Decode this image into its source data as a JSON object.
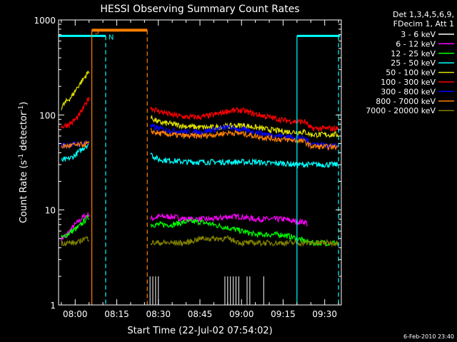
{
  "page": {
    "background": "#000000",
    "foreground": "#ffffff"
  },
  "chart_data": {
    "type": "line",
    "title": "HESSI Observing Summary Count Rates",
    "xlabel": "Start Time (22-Jul-02 07:54:02)",
    "ylabel_prefix": "Count Rate (s",
    "ylabel_sup1": "-1",
    "ylabel_mid": " detector",
    "ylabel_sup2": "-1",
    "ylabel_suffix": ")",
    "x_ticks": [
      "08:00",
      "08:15",
      "08:30",
      "08:45",
      "09:00",
      "09:15",
      "09:30"
    ],
    "x_tick_minutes": [
      480,
      495,
      510,
      525,
      540,
      555,
      570
    ],
    "xlim_minutes": [
      474.0,
      576.0
    ],
    "y_scale": "log",
    "ylim": [
      1,
      1000
    ],
    "y_ticks": [
      "1",
      "10",
      "100",
      "1000"
    ],
    "y_tick_values": [
      1,
      10,
      100,
      1000
    ],
    "legend_header": [
      "Det 1,3,4,5,6,9,",
      "FDecim 1, Att 1"
    ],
    "legend_placement": "right",
    "footer_date": "6-Feb-2010 23:40",
    "annotations": {
      "S": {
        "label": "S",
        "color": "#ff7f00"
      },
      "N": {
        "label": "N",
        "color": "#00ffff"
      },
      "saa_bar": {
        "color": "#ff7f00",
        "start": 486,
        "end": 506,
        "level": 780
      },
      "night_bars": [
        {
          "color": "#00ffff",
          "start": 474,
          "end": 491,
          "level": 680
        },
        {
          "color": "#00ffff",
          "start": 560,
          "end": 575.5,
          "level": 680
        }
      ],
      "vertical_lines": [
        {
          "x": 486,
          "color": "#ff7f00",
          "style": "solid"
        },
        {
          "x": 491,
          "color": "#00ffff",
          "style": "dashed"
        },
        {
          "x": 506,
          "color": "#ff7f00",
          "style": "dashed"
        },
        {
          "x": 560,
          "color": "#00ffff",
          "style": "solid"
        },
        {
          "x": 575,
          "color": "#00ffff",
          "style": "dashed"
        }
      ]
    },
    "series": [
      {
        "name": "3 - 6 keV",
        "color": "#ffffff",
        "kind": "spikes",
        "x": [
          507,
          508,
          509,
          510,
          534,
          535,
          536,
          537,
          538,
          539,
          542,
          543,
          548
        ],
        "values": [
          2,
          2,
          2,
          2,
          2,
          2,
          2,
          2,
          2,
          2,
          2,
          2,
          2
        ]
      },
      {
        "name": "6 - 12 keV",
        "color": "#ff00ff",
        "x": [
          475,
          477,
          479,
          481,
          483,
          485,
          507,
          510,
          515,
          520,
          525,
          530,
          535,
          540,
          545,
          550,
          555,
          560,
          563,
          564
        ],
        "values": [
          5.0,
          5.5,
          6.5,
          7.5,
          8.5,
          9.0,
          8.0,
          8.5,
          8.5,
          8.0,
          8.0,
          8.0,
          8.5,
          8.5,
          8.0,
          8.0,
          8.0,
          7.5,
          7.5,
          7.0
        ]
      },
      {
        "name": "12 - 25 keV",
        "color": "#00ff00",
        "x": [
          475,
          477,
          479,
          481,
          483,
          485,
          507,
          510,
          515,
          520,
          525,
          530,
          535,
          540,
          545,
          550,
          555,
          560,
          565,
          570,
          575
        ],
        "values": [
          5.0,
          5.5,
          6.0,
          6.5,
          7.5,
          8.5,
          7.0,
          7.0,
          7.0,
          7.5,
          7.5,
          7.0,
          6.5,
          6.0,
          5.5,
          5.5,
          5.5,
          5.0,
          4.5,
          4.5,
          4.5
        ]
      },
      {
        "name": "25 - 50 keV",
        "color": "#00ffff",
        "x": [
          475,
          477,
          479,
          481,
          483,
          485,
          507,
          508,
          510,
          515,
          520,
          525,
          530,
          535,
          540,
          545,
          550,
          555,
          560,
          565,
          570,
          575
        ],
        "values": [
          33,
          34,
          36,
          40,
          45,
          50,
          42,
          37,
          34,
          33,
          32,
          32,
          32,
          32,
          32,
          32,
          31,
          31,
          30,
          30,
          30,
          30
        ]
      },
      {
        "name": "50 - 100 keV",
        "color": "#e0e000",
        "x": [
          475,
          477,
          479,
          481,
          483,
          485,
          507,
          510,
          515,
          520,
          525,
          530,
          535,
          540,
          545,
          550,
          555,
          560,
          563,
          565,
          570,
          575
        ],
        "values": [
          120,
          140,
          160,
          200,
          240,
          290,
          95,
          84,
          80,
          76,
          74,
          74,
          76,
          78,
          74,
          70,
          67,
          66,
          66,
          62,
          62,
          62
        ]
      },
      {
        "name": "100 - 300 keV",
        "color": "#ff0000",
        "x": [
          475,
          477,
          479,
          481,
          483,
          485,
          507,
          510,
          515,
          520,
          525,
          530,
          535,
          540,
          545,
          550,
          555,
          560,
          563,
          565,
          570,
          575
        ],
        "values": [
          75,
          78,
          84,
          95,
          118,
          155,
          120,
          110,
          100,
          95,
          95,
          100,
          110,
          112,
          102,
          95,
          88,
          85,
          85,
          72,
          72,
          72
        ]
      },
      {
        "name": "300 - 800 keV",
        "color": "#0000ff",
        "x": [
          475,
          477,
          479,
          481,
          483,
          485,
          507,
          510,
          515,
          520,
          525,
          530,
          535,
          540,
          545,
          550,
          555,
          560,
          563,
          565,
          570,
          575
        ],
        "values": [
          48,
          48,
          49,
          49,
          50,
          52,
          76,
          72,
          68,
          66,
          66,
          70,
          74,
          70,
          66,
          62,
          60,
          58,
          56,
          50,
          48,
          47
        ]
      },
      {
        "name": "800 - 7000 keV",
        "color": "#ff7f00",
        "x": [
          475,
          477,
          479,
          481,
          483,
          485,
          507,
          510,
          515,
          520,
          525,
          530,
          535,
          540,
          545,
          550,
          555,
          560,
          563,
          565,
          570,
          575
        ],
        "values": [
          47,
          47,
          48,
          48,
          49,
          50,
          68,
          64,
          62,
          60,
          60,
          62,
          65,
          64,
          60,
          57,
          55,
          54,
          52,
          47,
          46,
          46
        ]
      },
      {
        "name": "7000 - 20000 keV",
        "color": "#808000",
        "x": [
          475,
          477,
          479,
          481,
          483,
          485,
          507,
          510,
          515,
          520,
          525,
          530,
          535,
          540,
          545,
          550,
          555,
          560,
          565,
          570,
          575
        ],
        "values": [
          4.5,
          4.5,
          4.5,
          4.5,
          5.0,
          5.0,
          4.5,
          4.5,
          4.5,
          4.5,
          5.0,
          5.0,
          5.0,
          4.5,
          4.5,
          4.5,
          4.5,
          4.5,
          4.5,
          4.5,
          4.5
        ]
      }
    ]
  }
}
